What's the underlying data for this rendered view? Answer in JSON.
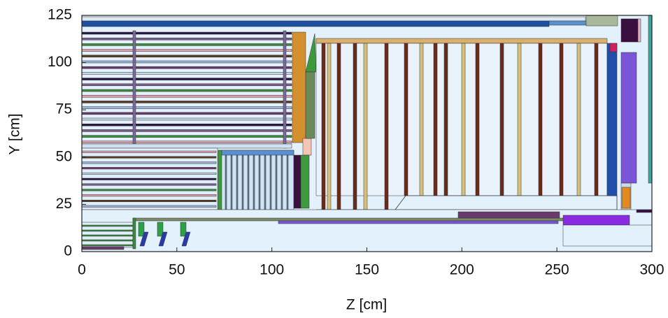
{
  "chart_data": {
    "type": "geometry",
    "xlabel": "Z [cm]",
    "ylabel": "Y [cm]",
    "xlim": [
      0,
      300
    ],
    "ylim": [
      0,
      125
    ],
    "xticks": [
      0,
      50,
      100,
      150,
      200,
      250,
      300
    ],
    "yticks": [
      0,
      25,
      50,
      75,
      100,
      125
    ]
  }
}
